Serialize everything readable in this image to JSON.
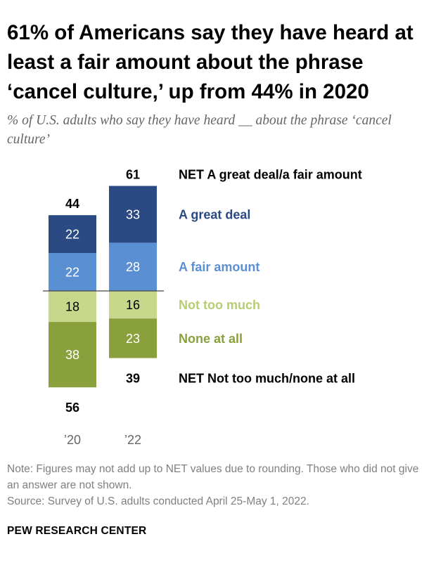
{
  "title": "61% of Americans say they have heard at least a fair amount about the phrase ‘cancel culture,’ up from 44% in 2020",
  "subtitle": "% of U.S. adults who say they have heard __ about the phrase ‘cancel culture’",
  "note": "Note: Figures may not add up to NET values due to rounding. Those who did not give an answer are not shown.",
  "source": "Source: Survey of U.S. adults conducted April 25-May 1, 2022.",
  "brand": "PEW RESEARCH CENTER",
  "colors": {
    "great_deal": "#2b4a83",
    "fair_amount": "#5b8fd4",
    "not_too_much": "#c7d88c",
    "none_at_all": "#8aa03c",
    "baseline": "#444444"
  },
  "chart_data": {
    "type": "bar",
    "stacking": "diverging",
    "categories": [
      "’20",
      "’22"
    ],
    "series": [
      {
        "name": "A great deal",
        "values": [
          22,
          33
        ],
        "side": "positive",
        "color": "#2b4a83",
        "label_color": "#2b4a83",
        "value_text": "#ffffff"
      },
      {
        "name": "A fair amount",
        "values": [
          22,
          28
        ],
        "side": "positive",
        "color": "#5b8fd4",
        "label_color": "#5b8fd4",
        "value_text": "#ffffff"
      },
      {
        "name": "Not too much",
        "values": [
          18,
          16
        ],
        "side": "negative",
        "color": "#c7d88c",
        "label_color": "#b8cc74",
        "value_text": "#000000"
      },
      {
        "name": "None at all",
        "values": [
          38,
          23
        ],
        "side": "negative",
        "color": "#8aa03c",
        "label_color": "#8aa03c",
        "value_text": "#ffffff"
      }
    ],
    "net_positive": {
      "name": "NET A great deal/a fair amount",
      "values": [
        44,
        61
      ]
    },
    "net_negative": {
      "name": "NET Not too much/none at all",
      "values": [
        56,
        39
      ]
    }
  }
}
